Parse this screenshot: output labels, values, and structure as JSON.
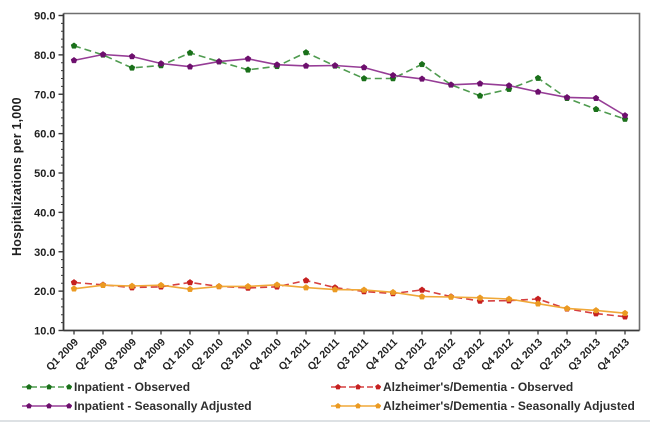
{
  "chart_data": {
    "type": "line",
    "title": "",
    "xlabel": "",
    "ylabel": "Hospitalizations per 1,000",
    "ylim": [
      10,
      90
    ],
    "ytick_step": 10,
    "ytick_labels": [
      "10.0",
      "20.0",
      "30.0",
      "40.0",
      "50.0",
      "60.0",
      "70.0",
      "80.0",
      "90.0"
    ],
    "grid": false,
    "legend_position": "bottom",
    "categories": [
      "Q1 2009",
      "Q2 2009",
      "Q3 2009",
      "Q4 2009",
      "Q1 2010",
      "Q2 2010",
      "Q3 2010",
      "Q4 2010",
      "Q1 2011",
      "Q2 2011",
      "Q3 2011",
      "Q4 2011",
      "Q1 2012",
      "Q2 2012",
      "Q3 2012",
      "Q4 2012",
      "Q1 2013",
      "Q2 2013",
      "Q3 2013",
      "Q4 2013"
    ],
    "series": [
      {
        "name": "Inpatient - Observed",
        "dashed": true,
        "line_color": "#4f9b4f",
        "marker_color": "#1a701a",
        "values": [
          82.3,
          80.0,
          76.7,
          77.3,
          80.5,
          78.3,
          76.2,
          77.1,
          80.6,
          77.2,
          74.0,
          74.0,
          77.6,
          72.4,
          69.6,
          71.3,
          74.1,
          69.0,
          66.2,
          63.7
        ]
      },
      {
        "name": "Inpatient - Seasonally Adjusted",
        "dashed": false,
        "line_color": "#963d96",
        "marker_color": "#6d0f6d",
        "values": [
          78.6,
          80.1,
          79.6,
          77.8,
          77.0,
          78.3,
          79.0,
          77.5,
          77.2,
          77.3,
          76.8,
          74.8,
          73.9,
          72.4,
          72.7,
          72.2,
          70.6,
          69.2,
          69.0,
          64.6
        ]
      },
      {
        "name": "Alzheimer's/Dementia - Observed",
        "dashed": true,
        "line_color": "#d64040",
        "marker_color": "#c62020",
        "values": [
          22.2,
          21.6,
          20.9,
          21.1,
          22.2,
          21.2,
          20.8,
          21.1,
          22.7,
          20.9,
          19.9,
          19.4,
          20.3,
          18.6,
          17.5,
          17.6,
          18.0,
          15.5,
          14.3,
          13.5
        ]
      },
      {
        "name": "Alzheimer's/Dementia - Seasonally Adjusted",
        "dashed": false,
        "line_color": "#f0a838",
        "marker_color": "#eb9a22",
        "values": [
          20.6,
          21.5,
          21.3,
          21.5,
          20.5,
          21.2,
          21.2,
          21.6,
          20.9,
          20.4,
          20.3,
          19.7,
          18.6,
          18.5,
          18.3,
          18.0,
          16.8,
          15.6,
          15.1,
          14.4
        ]
      }
    ],
    "colors": {
      "axis": "#3a3a3a",
      "frame": "#6f6f6f",
      "tick_text": "#1f1f1f",
      "background": "#ffffff"
    }
  }
}
